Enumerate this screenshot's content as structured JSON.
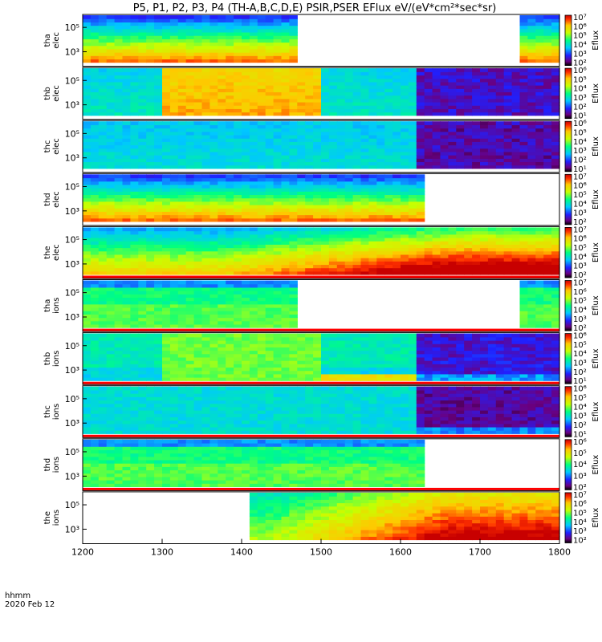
{
  "figure": {
    "title": "P5, P1, P2, P3, P4 (TH-A,B,C,D,E) PSIR,PSER EFlux eV/(eV*cm²*sec*sr)",
    "x_axis_name": "hhmm",
    "date_label": "2020 Feb 12"
  },
  "chart_data": {
    "type": "heatmap",
    "x_ticks": [
      "1200",
      "1300",
      "1400",
      "1500",
      "1600",
      "1700",
      "1800"
    ],
    "x_range_hhmm": [
      1200,
      1800
    ],
    "colorbar_label": "Eflux",
    "panels": [
      {
        "probe": "tha",
        "species": "elec",
        "label_top": "tha",
        "label_bottom": "elec",
        "y_ticks": [
          "10⁵",
          "10³"
        ],
        "cbar_ticks": [
          "10⁷",
          "10⁶",
          "10⁵",
          "10⁴",
          "10³",
          "10²"
        ],
        "coverage_hhmm": [
          [
            1200,
            1467
          ],
          [
            1752,
            1800
          ]
        ],
        "trend": "tail-warm"
      },
      {
        "probe": "thb",
        "species": "elec",
        "label_top": "thb",
        "label_bottom": "elec",
        "y_ticks": [
          "10⁵",
          "10³"
        ],
        "cbar_ticks": [
          "10⁶",
          "10⁵",
          "10⁴",
          "10³",
          "10²",
          "10¹"
        ],
        "coverage_hhmm": [
          [
            1200,
            1800
          ]
        ],
        "trend": "block-orange"
      },
      {
        "probe": "thc",
        "species": "elec",
        "label_top": "thc",
        "label_bottom": "elec",
        "y_ticks": [
          "10⁵",
          "10³"
        ],
        "cbar_ticks": [
          "10⁶",
          "10⁵",
          "10⁴",
          "10³",
          "10²",
          "10¹"
        ],
        "coverage_hhmm": [
          [
            1200,
            1800
          ]
        ],
        "trend": "cyan-dark"
      },
      {
        "probe": "thd",
        "species": "elec",
        "label_top": "thd",
        "label_bottom": "elec",
        "y_ticks": [
          "10⁵",
          "10³"
        ],
        "cbar_ticks": [
          "10⁷",
          "10⁶",
          "10⁵",
          "10⁴",
          "10³",
          "10²"
        ],
        "coverage_hhmm": [
          [
            1200,
            1632
          ]
        ],
        "trend": "tail-warm"
      },
      {
        "probe": "the",
        "species": "elec",
        "label_top": "the",
        "label_bottom": "elec",
        "y_ticks": [
          "10⁵",
          "10³"
        ],
        "cbar_ticks": [
          "10⁷",
          "10⁶",
          "10⁵",
          "10⁴",
          "10³",
          "10²"
        ],
        "coverage_hhmm": [
          [
            1200,
            1800
          ]
        ],
        "trend": "rising-red"
      },
      {
        "probe": "tha",
        "species": "ions",
        "label_top": "tha",
        "label_bottom": "ions",
        "y_ticks": [
          "10⁵",
          "10³"
        ],
        "cbar_ticks": [
          "10⁷",
          "10⁶",
          "10⁵",
          "10⁴",
          "10³",
          "10²"
        ],
        "coverage_hhmm": [
          [
            1200,
            1467
          ],
          [
            1755,
            1800
          ]
        ],
        "trend": "ion-green"
      },
      {
        "probe": "thb",
        "species": "ions",
        "label_top": "thb",
        "label_bottom": "ions",
        "y_ticks": [
          "10⁵",
          "10³"
        ],
        "cbar_ticks": [
          "10⁶",
          "10⁵",
          "10⁴",
          "10³",
          "10²",
          "10¹"
        ],
        "coverage_hhmm": [
          [
            1200,
            1800
          ]
        ],
        "trend": "ion-block"
      },
      {
        "probe": "thc",
        "species": "ions",
        "label_top": "thc",
        "label_bottom": "ions",
        "y_ticks": [
          "10⁵",
          "10³"
        ],
        "cbar_ticks": [
          "10⁶",
          "10⁵",
          "10⁴",
          "10³",
          "10²",
          "10¹"
        ],
        "coverage_hhmm": [
          [
            1200,
            1800
          ]
        ],
        "trend": "ion-cyan-dark"
      },
      {
        "probe": "thd",
        "species": "ions",
        "label_top": "thd",
        "label_bottom": "ions",
        "y_ticks": [
          "10⁵",
          "10³"
        ],
        "cbar_ticks": [
          "10⁶",
          "10⁵",
          "10⁴",
          "10³",
          "10²"
        ],
        "coverage_hhmm": [
          [
            1200,
            1632
          ]
        ],
        "trend": "ion-green"
      },
      {
        "probe": "the",
        "species": "ions",
        "label_top": "the",
        "label_bottom": "ions",
        "y_ticks": [
          "10⁵",
          "10³"
        ],
        "cbar_ticks": [
          "10⁷",
          "10⁶",
          "10⁵",
          "10⁴",
          "10³",
          "10²"
        ],
        "coverage_hhmm": [
          [
            1412,
            1800
          ]
        ],
        "trend": "rising-red-ion"
      }
    ]
  }
}
